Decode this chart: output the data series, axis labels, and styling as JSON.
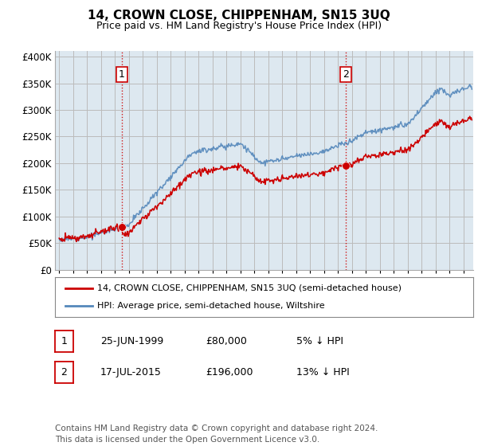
{
  "title": "14, CROWN CLOSE, CHIPPENHAM, SN15 3UQ",
  "subtitle": "Price paid vs. HM Land Registry's House Price Index (HPI)",
  "ylabel_ticks": [
    "£0",
    "£50K",
    "£100K",
    "£150K",
    "£200K",
    "£250K",
    "£300K",
    "£350K",
    "£400K"
  ],
  "ytick_values": [
    0,
    50000,
    100000,
    150000,
    200000,
    250000,
    300000,
    350000,
    400000
  ],
  "ylim": [
    0,
    410000
  ],
  "xlim_start": 1994.7,
  "xlim_end": 2024.7,
  "sale1_x": 1999.48,
  "sale1_y": 80000,
  "sale2_x": 2015.54,
  "sale2_y": 196000,
  "vline1_x": 1999.48,
  "vline2_x": 2015.54,
  "line_color_red": "#cc0000",
  "line_color_blue": "#5588bb",
  "vline_color": "#cc0000",
  "grid_color": "#bbbbbb",
  "plot_bg_color": "#dde8f0",
  "background_color": "#ffffff",
  "legend_label_red": "14, CROWN CLOSE, CHIPPENHAM, SN15 3UQ (semi-detached house)",
  "legend_label_blue": "HPI: Average price, semi-detached house, Wiltshire",
  "footnote": "Contains HM Land Registry data © Crown copyright and database right 2024.\nThis data is licensed under the Open Government Licence v3.0.",
  "table_rows": [
    {
      "num": "1",
      "date": "25-JUN-1999",
      "price": "£80,000",
      "hpi": "5% ↓ HPI"
    },
    {
      "num": "2",
      "date": "17-JUL-2015",
      "price": "£196,000",
      "hpi": "13% ↓ HPI"
    }
  ]
}
